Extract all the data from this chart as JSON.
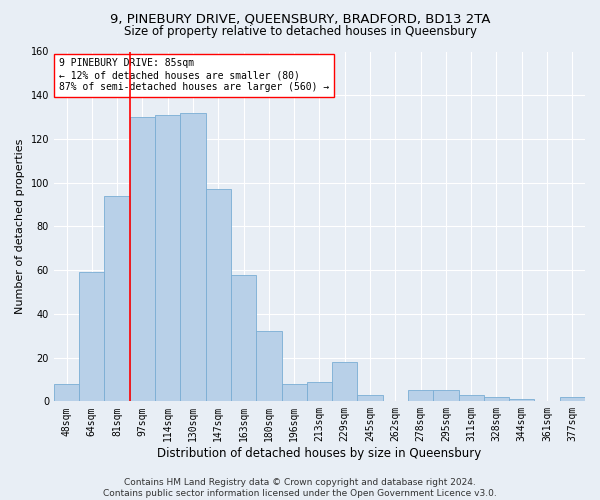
{
  "title": "9, PINEBURY DRIVE, QUEENSBURY, BRADFORD, BD13 2TA",
  "subtitle": "Size of property relative to detached houses in Queensbury",
  "xlabel": "Distribution of detached houses by size in Queensbury",
  "ylabel": "Number of detached properties",
  "categories": [
    "48sqm",
    "64sqm",
    "81sqm",
    "97sqm",
    "114sqm",
    "130sqm",
    "147sqm",
    "163sqm",
    "180sqm",
    "196sqm",
    "213sqm",
    "229sqm",
    "245sqm",
    "262sqm",
    "278sqm",
    "295sqm",
    "311sqm",
    "328sqm",
    "344sqm",
    "361sqm",
    "377sqm"
  ],
  "values": [
    8,
    59,
    94,
    130,
    131,
    132,
    97,
    58,
    32,
    8,
    9,
    18,
    3,
    0,
    5,
    5,
    3,
    2,
    1,
    0,
    2
  ],
  "bar_color": "#b8d0e8",
  "bar_edge_color": "#7aadd4",
  "property_line_x": 2.5,
  "property_line_color": "red",
  "ylim": [
    0,
    160
  ],
  "yticks": [
    0,
    20,
    40,
    60,
    80,
    100,
    120,
    140,
    160
  ],
  "annotation_text": "9 PINEBURY DRIVE: 85sqm\n← 12% of detached houses are smaller (80)\n87% of semi-detached houses are larger (560) →",
  "annotation_box_color": "white",
  "annotation_box_edge": "red",
  "footer1": "Contains HM Land Registry data © Crown copyright and database right 2024.",
  "footer2": "Contains public sector information licensed under the Open Government Licence v3.0.",
  "background_color": "#e8eef5",
  "grid_color": "white",
  "title_fontsize": 9.5,
  "subtitle_fontsize": 8.5,
  "xlabel_fontsize": 8.5,
  "ylabel_fontsize": 8,
  "tick_fontsize": 7,
  "annotation_fontsize": 7,
  "footer_fontsize": 6.5
}
